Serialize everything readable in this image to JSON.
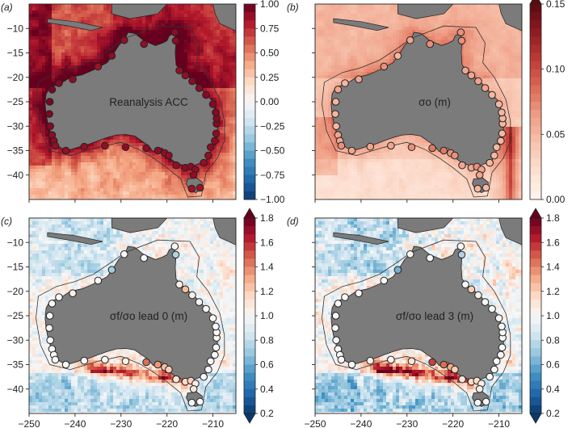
{
  "figure": {
    "panels": [
      {
        "letter": "(a)",
        "label": "Reanalysis ACC",
        "scale": "acc"
      },
      {
        "letter": "(b)",
        "label": "σo (m)",
        "scale": "sigma"
      },
      {
        "letter": "(c)",
        "label": "σf/σo lead 0 (m)",
        "scale": "ratio"
      },
      {
        "letter": "(d)",
        "label": "σf/σo lead 3 (m)",
        "scale": "ratio"
      }
    ]
  },
  "chart_data": {
    "type": "heatmap",
    "x_ticks": [
      "−250",
      "−240",
      "−230",
      "−220",
      "−210"
    ],
    "x_tick_values": [
      -250,
      -240,
      -230,
      -220,
      -210
    ],
    "y_ticks": [
      "−10",
      "−15",
      "−20",
      "−25",
      "−30",
      "−35",
      "−40"
    ],
    "y_tick_values": [
      -10,
      -15,
      -20,
      -25,
      -30,
      -35,
      -40
    ],
    "xlim": [
      -250,
      -205
    ],
    "ylim": [
      -45,
      -5
    ],
    "colorbars": {
      "acc": {
        "ticks": [
          "1.00",
          "0.75",
          "0.50",
          "0.25",
          "0.00",
          "−0.25",
          "−0.50",
          "−0.75",
          "−1.00"
        ],
        "tick_values": [
          1.0,
          0.75,
          0.5,
          0.25,
          0.0,
          -0.25,
          -0.5,
          -0.75,
          -1.0
        ],
        "range": [
          -1.0,
          1.0
        ],
        "extend": "neither",
        "colors": [
          "#0a3a6e",
          "#2166ac",
          "#4393c3",
          "#92c5de",
          "#d1e5f0",
          "#f7f7f7",
          "#fddbc7",
          "#f4a582",
          "#d6604d",
          "#b2182b",
          "#67001f"
        ]
      },
      "sigma": {
        "ticks": [
          "0.15",
          "0.10",
          "0.05",
          "0.00"
        ],
        "tick_values": [
          0.15,
          0.1,
          0.05,
          0.0
        ],
        "range": [
          0.0,
          0.15
        ],
        "extend": "max",
        "colors": [
          "#fff5f0",
          "#fde0d2",
          "#f7c3ad",
          "#ef9e86",
          "#dc6a55",
          "#bf3b36",
          "#8e1b20",
          "#5a0a12"
        ]
      },
      "ratio": {
        "ticks": [
          "1.8",
          "1.6",
          "1.4",
          "1.2",
          "1.0",
          "0.8",
          "0.6",
          "0.4",
          "0.2"
        ],
        "tick_values": [
          1.8,
          1.6,
          1.4,
          1.2,
          1.0,
          0.8,
          0.6,
          0.4,
          0.2
        ],
        "range": [
          0.2,
          1.8
        ],
        "extend": "both",
        "colors": [
          "#0a3a6e",
          "#2166ac",
          "#4393c3",
          "#92c5de",
          "#d1e5f0",
          "#f7f7f7",
          "#fddbc7",
          "#f4a582",
          "#d6604d",
          "#b2182b",
          "#67001f"
        ]
      }
    },
    "colors": {
      "land": "#7b7b7b",
      "station_edge": "#222222",
      "contour": "#333333"
    },
    "coastline": [
      [
        -245.5,
        -22.0
      ],
      [
        -243.5,
        -21.5
      ],
      [
        -241.0,
        -20.0
      ],
      [
        -238.5,
        -19.5
      ],
      [
        -236.0,
        -18.5
      ],
      [
        -233.0,
        -17.0
      ],
      [
        -231.5,
        -15.0
      ],
      [
        -230.5,
        -13.5
      ],
      [
        -229.0,
        -12.0
      ],
      [
        -228.5,
        -10.8
      ],
      [
        -227.0,
        -11.0
      ],
      [
        -225.0,
        -12.5
      ],
      [
        -222.5,
        -13.5
      ],
      [
        -221.0,
        -13.0
      ],
      [
        -220.0,
        -12.5
      ],
      [
        -219.5,
        -11.5
      ],
      [
        -218.5,
        -11.0
      ],
      [
        -218.0,
        -12.5
      ],
      [
        -218.2,
        -15.0
      ],
      [
        -218.0,
        -17.5
      ],
      [
        -217.5,
        -18.0
      ],
      [
        -216.0,
        -19.5
      ],
      [
        -214.5,
        -20.5
      ],
      [
        -213.0,
        -22.0
      ],
      [
        -211.5,
        -23.5
      ],
      [
        -210.0,
        -25.0
      ],
      [
        -209.5,
        -27.0
      ],
      [
        -209.0,
        -29.5
      ],
      [
        -209.0,
        -31.5
      ],
      [
        -209.5,
        -33.0
      ],
      [
        -210.5,
        -35.0
      ],
      [
        -211.5,
        -37.0
      ],
      [
        -212.5,
        -37.5
      ],
      [
        -214.0,
        -38.0
      ],
      [
        -215.5,
        -38.5
      ],
      [
        -216.5,
        -38.0
      ],
      [
        -218.0,
        -37.5
      ],
      [
        -219.5,
        -36.5
      ],
      [
        -220.5,
        -35.5
      ],
      [
        -221.0,
        -34.5
      ],
      [
        -222.0,
        -34.5
      ],
      [
        -223.0,
        -35.2
      ],
      [
        -224.0,
        -34.0
      ],
      [
        -225.5,
        -33.0
      ],
      [
        -227.0,
        -32.0
      ],
      [
        -229.0,
        -31.7
      ],
      [
        -231.0,
        -31.8
      ],
      [
        -233.0,
        -32.3
      ],
      [
        -235.0,
        -33.0
      ],
      [
        -237.0,
        -33.7
      ],
      [
        -239.0,
        -34.2
      ],
      [
        -241.0,
        -34.8
      ],
      [
        -243.0,
        -34.5
      ],
      [
        -244.0,
        -33.8
      ],
      [
        -245.0,
        -32.0
      ],
      [
        -245.8,
        -30.0
      ],
      [
        -246.3,
        -27.5
      ],
      [
        -246.5,
        -25.5
      ],
      [
        -246.3,
        -23.5
      ],
      [
        -245.5,
        -22.0
      ]
    ],
    "tasmania": [
      [
        -215.5,
        -40.8
      ],
      [
        -213.5,
        -40.6
      ],
      [
        -212.3,
        -41.5
      ],
      [
        -212.5,
        -43.0
      ],
      [
        -213.8,
        -43.6
      ],
      [
        -215.2,
        -42.8
      ],
      [
        -215.8,
        -41.8
      ],
      [
        -215.5,
        -40.8
      ]
    ],
    "islands": [
      [
        [
          -232.0,
          -5.0
        ],
        [
          -220.0,
          -5.0
        ],
        [
          -222.0,
          -7.0
        ],
        [
          -228.0,
          -8.0
        ],
        [
          -232.0,
          -7.0
        ]
      ],
      [
        [
          -246.0,
          -8.0
        ],
        [
          -240.0,
          -8.6
        ],
        [
          -234.0,
          -9.8
        ],
        [
          -236.5,
          -10.4
        ],
        [
          -242.0,
          -9.4
        ],
        [
          -246.0,
          -8.8
        ]
      ],
      [
        [
          -210.0,
          -5.0
        ],
        [
          -205.0,
          -5.0
        ],
        [
          -205.0,
          -10.5
        ],
        [
          -208.5,
          -9.0
        ],
        [
          -209.5,
          -7.0
        ]
      ]
    ],
    "shelf": [
      [
        -248.0,
        -21.0
      ],
      [
        -244.0,
        -19.0
      ],
      [
        -240.0,
        -18.0
      ],
      [
        -236.0,
        -16.5
      ],
      [
        -232.0,
        -14.0
      ],
      [
        -229.0,
        -12.0
      ],
      [
        -222.0,
        -9.5
      ],
      [
        -215.0,
        -9.8
      ],
      [
        -213.0,
        -13.0
      ],
      [
        -213.5,
        -17.0
      ],
      [
        -211.0,
        -20.0
      ],
      [
        -208.5,
        -24.5
      ],
      [
        -207.5,
        -29.0
      ],
      [
        -207.5,
        -33.0
      ],
      [
        -209.0,
        -36.5
      ],
      [
        -211.5,
        -39.5
      ],
      [
        -212.5,
        -44.3
      ],
      [
        -215.5,
        -44.5
      ],
      [
        -217.0,
        -40.8
      ],
      [
        -220.0,
        -38.5
      ],
      [
        -223.0,
        -36.5
      ],
      [
        -226.0,
        -34.8
      ],
      [
        -230.0,
        -33.3
      ],
      [
        -235.0,
        -34.3
      ],
      [
        -241.0,
        -36.0
      ],
      [
        -245.5,
        -35.0
      ],
      [
        -247.5,
        -31.0
      ],
      [
        -248.5,
        -25.5
      ],
      [
        -248.0,
        -21.0
      ]
    ],
    "stations": [
      {
        "lon": -229.3,
        "lat": -12.4,
        "acc": 0.88,
        "sigma": 0.06,
        "ratio0": 1.0,
        "ratio3": 1.0
      },
      {
        "lon": -232.0,
        "lat": -15.6,
        "acc": 0.9,
        "sigma": 0.05,
        "ratio0": 0.72,
        "ratio3": 0.62
      },
      {
        "lon": -235.0,
        "lat": -17.8,
        "acc": 0.85,
        "sigma": 0.07,
        "ratio0": 1.0,
        "ratio3": 1.0
      },
      {
        "lon": -240.5,
        "lat": -20.4,
        "acc": 0.9,
        "sigma": 0.06,
        "ratio0": 1.05,
        "ratio3": 1.02
      },
      {
        "lon": -243.5,
        "lat": -21.2,
        "acc": 0.92,
        "sigma": 0.05,
        "ratio0": 1.0,
        "ratio3": 1.0
      },
      {
        "lon": -245.0,
        "lat": -22.5,
        "acc": 0.95,
        "sigma": 0.06,
        "ratio0": 1.0,
        "ratio3": 1.0
      },
      {
        "lon": -245.5,
        "lat": -25.0,
        "acc": 0.95,
        "sigma": 0.05,
        "ratio0": 1.0,
        "ratio3": 1.0
      },
      {
        "lon": -245.6,
        "lat": -27.5,
        "acc": 0.93,
        "sigma": 0.05,
        "ratio0": 1.02,
        "ratio3": 1.0
      },
      {
        "lon": -245.4,
        "lat": -30.0,
        "acc": 0.92,
        "sigma": 0.05,
        "ratio0": 1.0,
        "ratio3": 1.0
      },
      {
        "lon": -245.0,
        "lat": -31.8,
        "acc": 0.9,
        "sigma": 0.06,
        "ratio0": 1.0,
        "ratio3": 1.0
      },
      {
        "lon": -244.6,
        "lat": -33.0,
        "acc": 0.9,
        "sigma": 0.06,
        "ratio0": 1.0,
        "ratio3": 1.0
      },
      {
        "lon": -244.3,
        "lat": -34.0,
        "acc": 0.88,
        "sigma": 0.07,
        "ratio0": 1.0,
        "ratio3": 1.0
      },
      {
        "lon": -242.0,
        "lat": -35.0,
        "acc": 0.88,
        "sigma": 0.06,
        "ratio0": 1.0,
        "ratio3": 1.0
      },
      {
        "lon": -238.0,
        "lat": -34.2,
        "acc": 0.88,
        "sigma": 0.06,
        "ratio0": 1.0,
        "ratio3": 1.05
      },
      {
        "lon": -233.5,
        "lat": -34.0,
        "acc": 0.88,
        "sigma": 0.06,
        "ratio0": 1.0,
        "ratio3": 1.0
      },
      {
        "lon": -229.0,
        "lat": -34.3,
        "acc": 0.9,
        "sigma": 0.07,
        "ratio0": 1.05,
        "ratio3": 1.1
      },
      {
        "lon": -224.5,
        "lat": -34.5,
        "acc": 0.9,
        "sigma": 0.08,
        "ratio0": 1.45,
        "ratio3": 1.55
      },
      {
        "lon": -222.0,
        "lat": -35.0,
        "acc": 0.9,
        "sigma": 0.08,
        "ratio0": 1.35,
        "ratio3": 1.45
      },
      {
        "lon": -220.5,
        "lat": -35.5,
        "acc": 0.88,
        "sigma": 0.07,
        "ratio0": 1.25,
        "ratio3": 1.3
      },
      {
        "lon": -219.6,
        "lat": -36.0,
        "acc": 0.88,
        "sigma": 0.07,
        "ratio0": 1.2,
        "ratio3": 1.2
      },
      {
        "lon": -218.0,
        "lat": -38.0,
        "acc": 0.88,
        "sigma": 0.06,
        "ratio0": 1.1,
        "ratio3": 1.1
      },
      {
        "lon": -216.0,
        "lat": -38.5,
        "acc": 0.9,
        "sigma": 0.06,
        "ratio0": 1.15,
        "ratio3": 1.15
      },
      {
        "lon": -214.8,
        "lat": -38.3,
        "acc": 0.9,
        "sigma": 0.07,
        "ratio0": 1.2,
        "ratio3": 1.15
      },
      {
        "lon": -213.8,
        "lat": -38.9,
        "acc": 0.88,
        "sigma": 0.06,
        "ratio0": 1.05,
        "ratio3": 1.05
      },
      {
        "lon": -214.2,
        "lat": -40.0,
        "acc": 0.88,
        "sigma": 0.06,
        "ratio0": 1.1,
        "ratio3": 1.05
      },
      {
        "lon": -214.6,
        "lat": -42.8,
        "acc": 0.85,
        "sigma": 0.05,
        "ratio0": 1.0,
        "ratio3": 1.0
      },
      {
        "lon": -212.8,
        "lat": -42.6,
        "acc": 0.85,
        "sigma": 0.05,
        "ratio0": 1.0,
        "ratio3": 1.0
      },
      {
        "lon": -212.0,
        "lat": -37.5,
        "acc": 0.88,
        "sigma": 0.05,
        "ratio0": 1.0,
        "ratio3": 1.0
      },
      {
        "lon": -211.0,
        "lat": -36.0,
        "acc": 0.88,
        "sigma": 0.05,
        "ratio0": 1.0,
        "ratio3": 1.0
      },
      {
        "lon": -210.5,
        "lat": -34.3,
        "acc": 0.9,
        "sigma": 0.05,
        "ratio0": 1.0,
        "ratio3": 1.0
      },
      {
        "lon": -209.6,
        "lat": -33.0,
        "acc": 0.9,
        "sigma": 0.05,
        "ratio0": 1.0,
        "ratio3": 1.0
      },
      {
        "lon": -209.3,
        "lat": -31.5,
        "acc": 0.9,
        "sigma": 0.05,
        "ratio0": 1.0,
        "ratio3": 1.0
      },
      {
        "lon": -209.2,
        "lat": -29.5,
        "acc": 0.92,
        "sigma": 0.05,
        "ratio0": 1.0,
        "ratio3": 1.0
      },
      {
        "lon": -209.2,
        "lat": -28.4,
        "acc": 0.92,
        "sigma": 0.05,
        "ratio0": 1.0,
        "ratio3": 1.0
      },
      {
        "lon": -209.4,
        "lat": -27.2,
        "acc": 0.92,
        "sigma": 0.05,
        "ratio0": 1.0,
        "ratio3": 1.0
      },
      {
        "lon": -210.0,
        "lat": -25.5,
        "acc": 0.92,
        "sigma": 0.05,
        "ratio0": 1.0,
        "ratio3": 1.0
      },
      {
        "lon": -211.5,
        "lat": -23.6,
        "acc": 0.92,
        "sigma": 0.05,
        "ratio0": 1.0,
        "ratio3": 1.0
      },
      {
        "lon": -213.0,
        "lat": -22.2,
        "acc": 0.9,
        "sigma": 0.06,
        "ratio0": 1.0,
        "ratio3": 1.0
      },
      {
        "lon": -214.5,
        "lat": -20.8,
        "acc": 0.9,
        "sigma": 0.06,
        "ratio0": 1.05,
        "ratio3": 1.05
      },
      {
        "lon": -216.0,
        "lat": -19.6,
        "acc": 0.88,
        "sigma": 0.06,
        "ratio0": 1.25,
        "ratio3": 1.2
      },
      {
        "lon": -217.3,
        "lat": -18.6,
        "acc": 0.88,
        "sigma": 0.06,
        "ratio0": 1.05,
        "ratio3": 1.0
      },
      {
        "lon": -218.1,
        "lat": -12.5,
        "acc": 0.9,
        "sigma": 0.07,
        "ratio0": 0.75,
        "ratio3": 0.75
      },
      {
        "lon": -218.3,
        "lat": -10.8,
        "acc": 0.9,
        "sigma": 0.07,
        "ratio0": 1.0,
        "ratio3": 1.0
      },
      {
        "lon": -225.0,
        "lat": -13.2,
        "acc": 0.88,
        "sigma": 0.07,
        "ratio0": 1.0,
        "ratio3": 1.0
      }
    ]
  }
}
